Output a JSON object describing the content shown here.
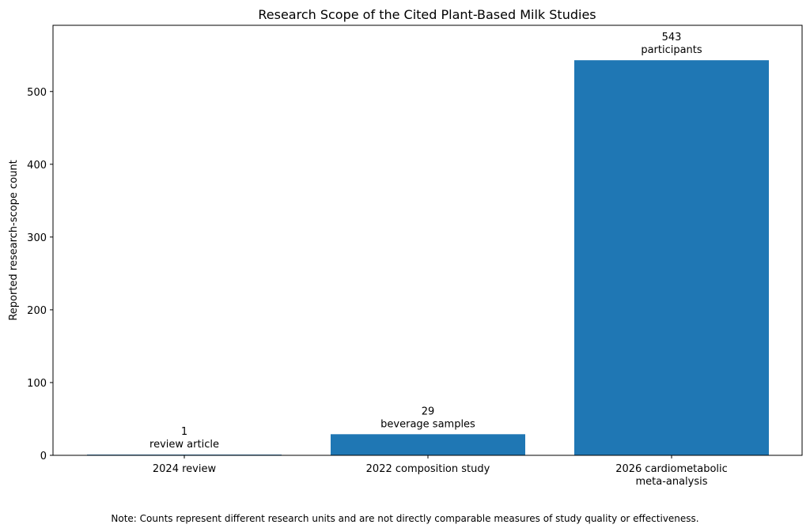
{
  "chart_data": {
    "type": "bar",
    "title": "Research Scope of the Cited Plant-Based Milk Studies",
    "xlabel": "",
    "ylabel": "Reported research-scope count",
    "ylim": [
      0,
      591
    ],
    "yticks": [
      0,
      100,
      200,
      300,
      400,
      500
    ],
    "grid": false,
    "categories": [
      [
        "2024 review"
      ],
      [
        "2022 composition study"
      ],
      [
        "2026 cardiometabolic",
        "meta-analysis"
      ]
    ],
    "values": [
      1,
      29,
      543
    ],
    "data_labels": [
      [
        "1",
        "review article"
      ],
      [
        "29",
        "beverage samples"
      ],
      [
        "543",
        "participants"
      ]
    ],
    "bar_color": "#1f77b4",
    "note": "Note: Counts represent different research units and are not directly comparable measures of study quality or effectiveness."
  }
}
